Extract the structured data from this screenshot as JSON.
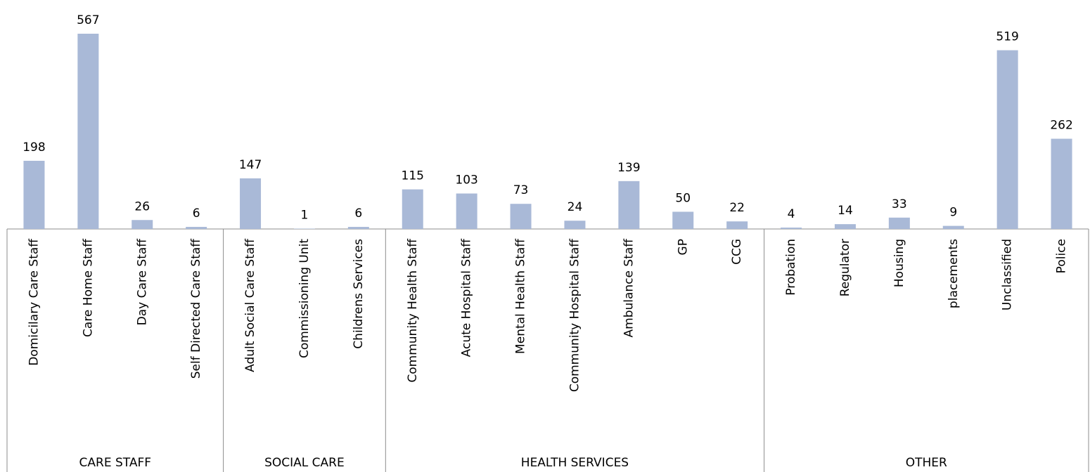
{
  "chart_data": {
    "type": "bar",
    "color": "#a9b9d7",
    "groups": [
      {
        "name": "CARE STAFF",
        "categories": [
          "Domicilary Care Staff",
          "Care Home Staff",
          "Day Care Staff",
          "Self Directed Care Staff"
        ],
        "values": [
          198,
          567,
          26,
          6
        ]
      },
      {
        "name": "SOCIAL CARE",
        "categories": [
          "Adult Social Care Staff",
          "Commissioning Unit",
          "Childrens Services"
        ],
        "values": [
          147,
          1,
          6
        ]
      },
      {
        "name": "HEALTH SERVICES",
        "categories": [
          "Community Health Staff",
          "Acute Hospital Staff",
          "Mental Health Staff",
          "Community Hospital Staff",
          "Ambulance Staff",
          "GP",
          "CCG"
        ],
        "values": [
          115,
          103,
          73,
          24,
          139,
          50,
          22
        ]
      },
      {
        "name": "OTHER",
        "categories": [
          "Probation",
          "Regulator",
          "Housing",
          "placements",
          "Unclassified",
          "Police"
        ],
        "values": [
          4,
          14,
          33,
          9,
          519,
          262
        ]
      }
    ]
  }
}
